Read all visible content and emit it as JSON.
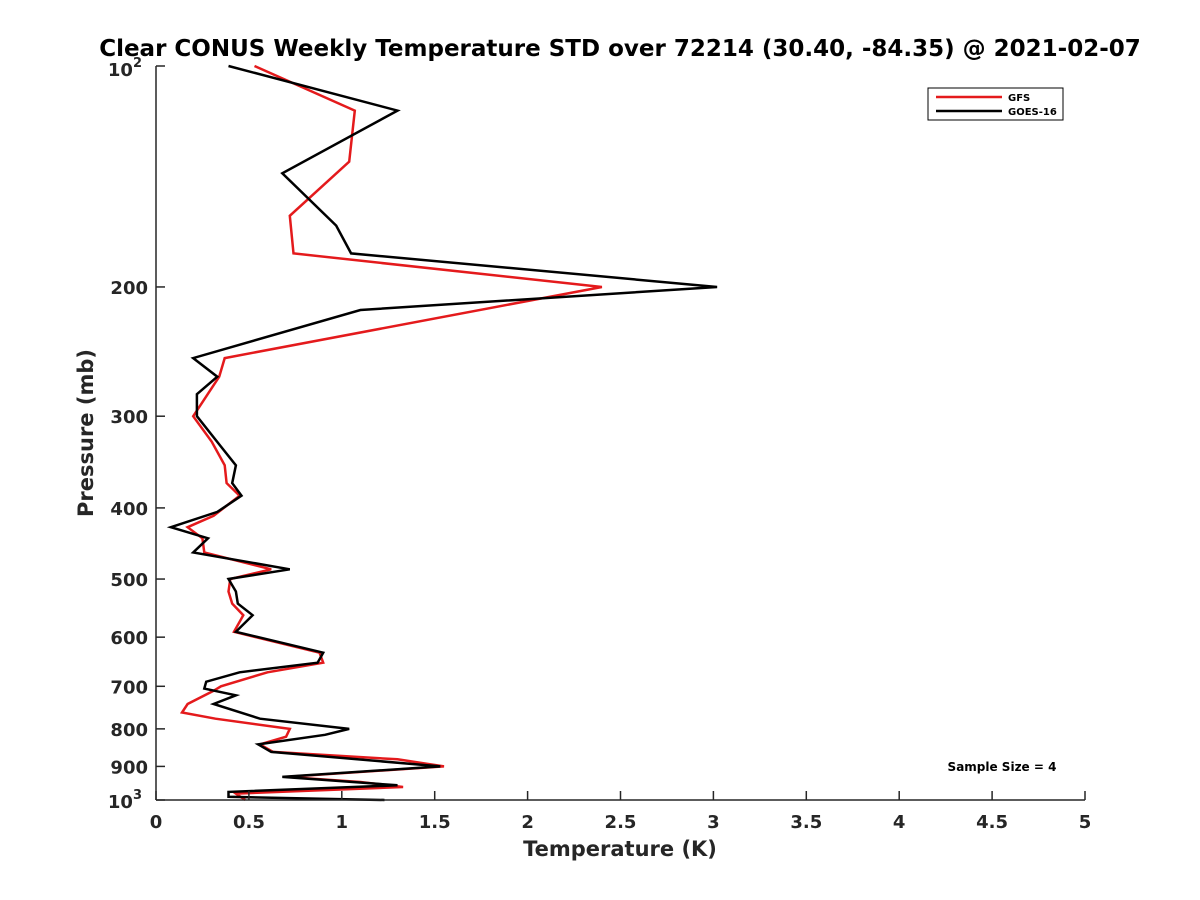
{
  "chart_data": {
    "type": "line",
    "title": "Clear CONUS Weekly Temperature STD over 72214 (30.40, -84.35) @ 2021-02-07",
    "xlabel": "Temperature (K)",
    "ylabel": "Pressure (mb)",
    "xlim": [
      0,
      5
    ],
    "ylim": [
      100,
      1000
    ],
    "y_scale": "log",
    "y_reversed": true,
    "grid": false,
    "x_ticks": [
      0,
      0.5,
      1,
      1.5,
      2,
      2.5,
      3,
      3.5,
      4,
      4.5,
      5
    ],
    "x_tick_labels": [
      "0",
      "0.5",
      "1",
      "1.5",
      "2",
      "2.5",
      "3",
      "3.5",
      "4",
      "4.5",
      "5"
    ],
    "y_ticks": [
      200,
      300,
      400,
      500,
      600,
      700,
      800,
      900
    ],
    "y_tick_labels": [
      "200",
      "300",
      "400",
      "500",
      "600",
      "700",
      "800",
      "900"
    ],
    "y_top_label": {
      "base": "10",
      "exp": "2"
    },
    "y_bottom_label": {
      "base": "10",
      "exp": "3"
    },
    "legend_position": "top-right",
    "series": [
      {
        "name": "GFS",
        "color": "#e41a1c",
        "points": [
          [
            0.53,
            100
          ],
          [
            1.07,
            115
          ],
          [
            1.04,
            135
          ],
          [
            0.72,
            160
          ],
          [
            0.74,
            180
          ],
          [
            2.4,
            200
          ],
          [
            0.37,
            250
          ],
          [
            0.34,
            265
          ],
          [
            0.2,
            300
          ],
          [
            0.3,
            325
          ],
          [
            0.37,
            350
          ],
          [
            0.38,
            370
          ],
          [
            0.45,
            385
          ],
          [
            0.31,
            410
          ],
          [
            0.17,
            425
          ],
          [
            0.25,
            440
          ],
          [
            0.26,
            460
          ],
          [
            0.62,
            485
          ],
          [
            0.4,
            500
          ],
          [
            0.39,
            520
          ],
          [
            0.41,
            540
          ],
          [
            0.47,
            560
          ],
          [
            0.42,
            590
          ],
          [
            0.88,
            630
          ],
          [
            0.9,
            650
          ],
          [
            0.6,
            670
          ],
          [
            0.35,
            700
          ],
          [
            0.31,
            710
          ],
          [
            0.17,
            740
          ],
          [
            0.14,
            760
          ],
          [
            0.32,
            775
          ],
          [
            0.72,
            800
          ],
          [
            0.7,
            820
          ],
          [
            0.56,
            840
          ],
          [
            0.63,
            860
          ],
          [
            1.3,
            880
          ],
          [
            1.55,
            900
          ],
          [
            0.7,
            930
          ],
          [
            1.1,
            945
          ],
          [
            1.33,
            960
          ],
          [
            0.43,
            980
          ],
          [
            0.48,
            1000
          ]
        ]
      },
      {
        "name": "GOES-16",
        "color": "#000000",
        "points": [
          [
            0.39,
            100
          ],
          [
            1.3,
            115
          ],
          [
            0.68,
            140
          ],
          [
            0.97,
            165
          ],
          [
            1.05,
            180
          ],
          [
            3.02,
            200
          ],
          [
            1.1,
            215
          ],
          [
            0.2,
            250
          ],
          [
            0.33,
            265
          ],
          [
            0.22,
            280
          ],
          [
            0.22,
            300
          ],
          [
            0.35,
            330
          ],
          [
            0.43,
            350
          ],
          [
            0.41,
            370
          ],
          [
            0.46,
            385
          ],
          [
            0.33,
            405
          ],
          [
            0.08,
            425
          ],
          [
            0.28,
            440
          ],
          [
            0.2,
            460
          ],
          [
            0.72,
            485
          ],
          [
            0.39,
            500
          ],
          [
            0.43,
            520
          ],
          [
            0.44,
            540
          ],
          [
            0.52,
            560
          ],
          [
            0.43,
            590
          ],
          [
            0.9,
            630
          ],
          [
            0.87,
            650
          ],
          [
            0.45,
            670
          ],
          [
            0.27,
            690
          ],
          [
            0.26,
            705
          ],
          [
            0.43,
            720
          ],
          [
            0.31,
            740
          ],
          [
            0.56,
            775
          ],
          [
            1.04,
            800
          ],
          [
            0.91,
            815
          ],
          [
            0.55,
            840
          ],
          [
            0.62,
            860
          ],
          [
            1.53,
            900
          ],
          [
            0.68,
            930
          ],
          [
            1.3,
            955
          ],
          [
            0.39,
            975
          ],
          [
            0.39,
            990
          ],
          [
            1.23,
            1000
          ]
        ]
      }
    ],
    "annotation": "Sample Size = 4"
  }
}
